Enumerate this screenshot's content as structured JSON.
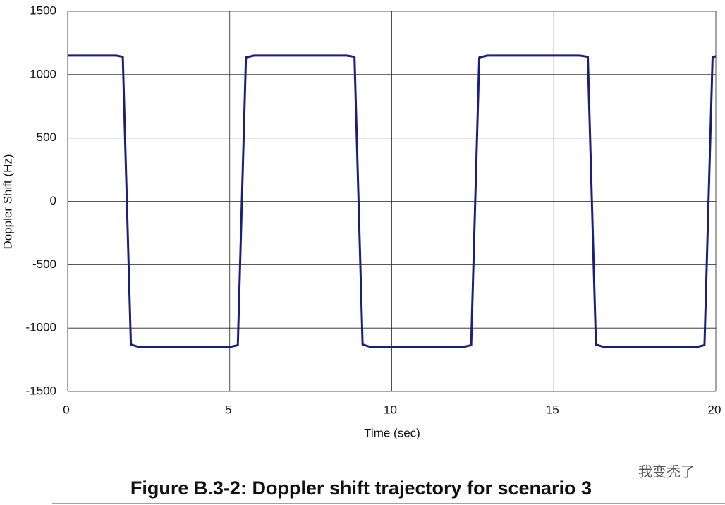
{
  "chart_data": {
    "type": "line",
    "caption": "Figure B.3-2: Doppler shift trajectory for scenario 3",
    "watermark": "我变秃了",
    "xlabel": "Time (sec)",
    "ylabel": "Doppler Shift (Hz)",
    "x": [
      0,
      1.5,
      1.7,
      1.95,
      2.2,
      5.0,
      5.25,
      5.5,
      5.75,
      8.6,
      8.85,
      9.1,
      9.35,
      12.2,
      12.45,
      12.7,
      12.95,
      15.8,
      16.05,
      16.3,
      16.55,
      19.4,
      19.65,
      19.9,
      20
    ],
    "values": [
      1150,
      1150,
      1140,
      -1130,
      -1150,
      -1150,
      -1135,
      1135,
      1150,
      1150,
      1140,
      -1130,
      -1150,
      -1150,
      -1135,
      1135,
      1150,
      1150,
      1140,
      -1130,
      -1150,
      -1150,
      -1135,
      1135,
      1145
    ],
    "color": "#1a1f7a",
    "xlim": [
      0,
      20
    ],
    "xticks": [
      0,
      5,
      10,
      15,
      20
    ],
    "ylim": [
      -1500,
      1500
    ],
    "yticks": [
      -1500,
      -1000,
      -500,
      0,
      500,
      1000,
      1500
    ],
    "grid": true
  }
}
